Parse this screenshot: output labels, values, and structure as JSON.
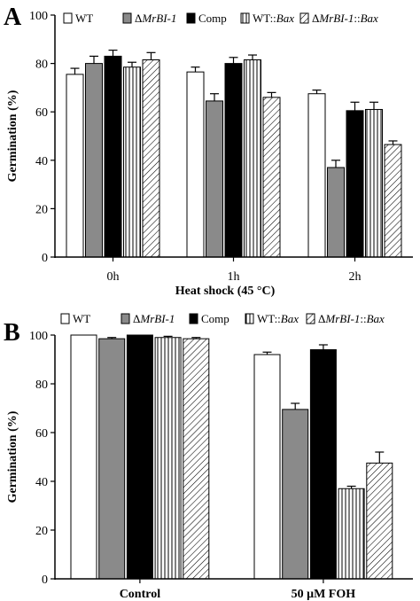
{
  "chart_data": [
    {
      "type": "bar",
      "panel_letter": "A",
      "categories": [
        "0h",
        "1h",
        "2h"
      ],
      "series": [
        {
          "name": "WT",
          "values": [
            75.5,
            76.5,
            67.5
          ],
          "errors": [
            2.5,
            2,
            1.5
          ],
          "fill": "white"
        },
        {
          "name": "ΔMrBI-1",
          "values": [
            80,
            64.5,
            37
          ],
          "errors": [
            3,
            3,
            3
          ],
          "fill": "gray"
        },
        {
          "name": "Comp",
          "values": [
            83,
            80,
            60.5
          ],
          "errors": [
            2.5,
            2.5,
            3.5
          ],
          "fill": "black"
        },
        {
          "name": "WT::Bax",
          "values": [
            78.5,
            81.5,
            61
          ],
          "errors": [
            2,
            2,
            3
          ],
          "fill": "vlines"
        },
        {
          "name": "ΔMrBI-1::Bax",
          "values": [
            81.5,
            66,
            46.5
          ],
          "errors": [
            3,
            2,
            1.5
          ],
          "fill": "hatch"
        }
      ],
      "legend": {
        "entries": [
          {
            "text": "WT"
          },
          {
            "text": "Δ",
            "italic": "MrBI-1"
          },
          {
            "text": "Comp"
          },
          {
            "text": "WT::",
            "italic": "Bax"
          },
          {
            "text": "Δ",
            "italic": "MrBI-1",
            "text2": "::",
            "italic2": "Bax"
          }
        ]
      },
      "xlabel": "Heat shock (45 °C)",
      "ylabel": "Germination (%)",
      "ylim": [
        0,
        100
      ],
      "yticks": [
        "0",
        "20",
        "40",
        "60",
        "80",
        "100"
      ],
      "grid": false
    },
    {
      "type": "bar",
      "panel_letter": "B",
      "categories": [
        "Control",
        "50 μM FOH"
      ],
      "series": [
        {
          "name": "WT",
          "values": [
            100,
            92
          ],
          "errors": [
            0,
            1
          ],
          "fill": "white"
        },
        {
          "name": "ΔMrBI-1",
          "values": [
            98.5,
            69.5
          ],
          "errors": [
            0.5,
            2.5
          ],
          "fill": "gray"
        },
        {
          "name": "Comp",
          "values": [
            100,
            94
          ],
          "errors": [
            0,
            2
          ],
          "fill": "black"
        },
        {
          "name": "WT::Bax",
          "values": [
            99,
            37
          ],
          "errors": [
            0.5,
            1
          ],
          "fill": "vlines"
        },
        {
          "name": "ΔMrBI-1::Bax",
          "values": [
            98.5,
            47.5
          ],
          "errors": [
            0.5,
            4.5
          ],
          "fill": "hatch"
        }
      ],
      "legend": {
        "entries": [
          {
            "text": "WT"
          },
          {
            "text": "Δ",
            "italic": "MrBI-1"
          },
          {
            "text": "Comp"
          },
          {
            "text": "WT::",
            "italic": "Bax"
          },
          {
            "text": "Δ",
            "italic": "MrBI-1",
            "text2": "::",
            "italic2": "Bax"
          }
        ]
      },
      "xlabel": "",
      "ylabel": "Germination (%)",
      "ylim": [
        0,
        100
      ],
      "yticks": [
        "0",
        "20",
        "40",
        "60",
        "80",
        "100"
      ],
      "grid": false
    }
  ],
  "colors": {
    "gray": "#8a8a8a",
    "black": "#000000",
    "white": "#ffffff"
  }
}
